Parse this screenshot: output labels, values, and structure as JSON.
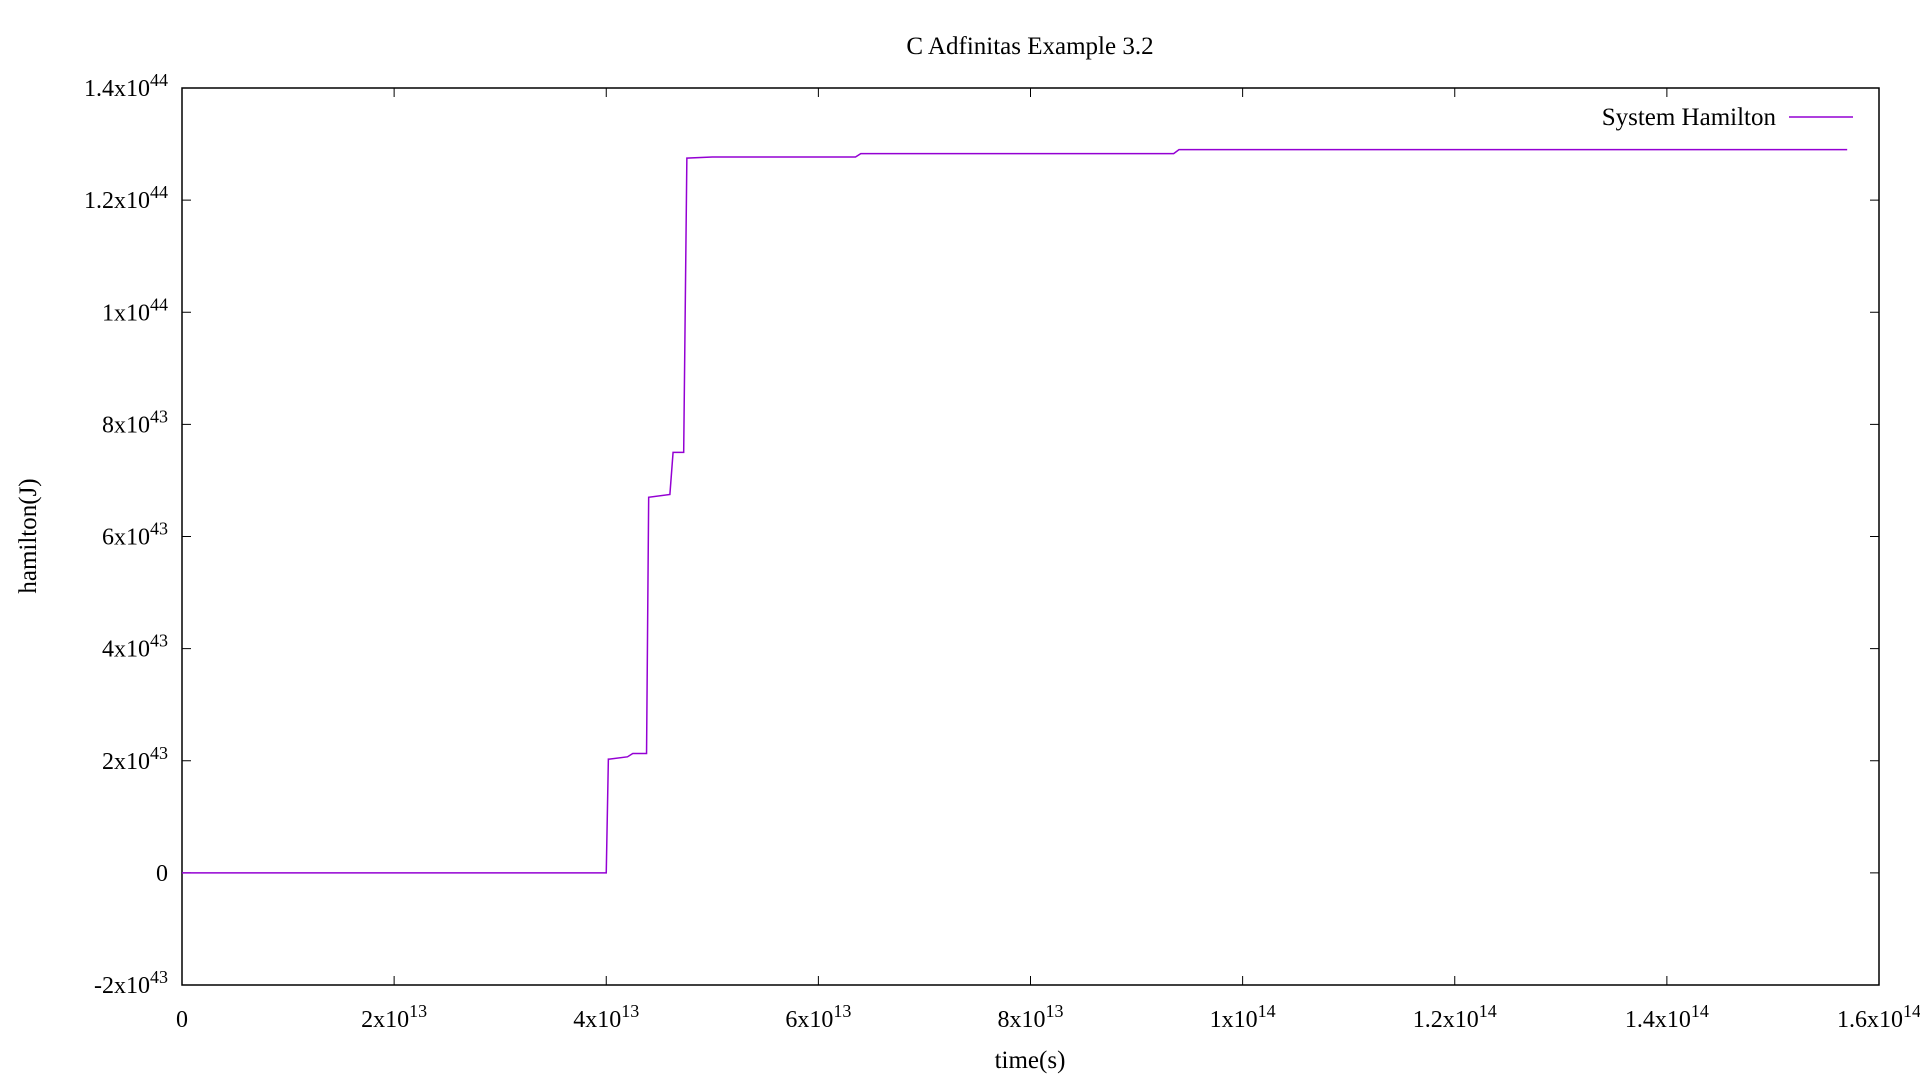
{
  "chart_data": {
    "type": "line",
    "title": "C Adfinitas Example 3.2",
    "xlabel": "time(s)",
    "ylabel": "hamilton(J)",
    "xlim": [
      0,
      160000000000000.0
    ],
    "ylim": [
      -2e+43,
      1.4e+44
    ],
    "grid": false,
    "legend_position": "top-right",
    "x_ticks": [
      {
        "value": 0,
        "mantissa": "0",
        "exponent": ""
      },
      {
        "value": 20000000000000.0,
        "mantissa": "2x10",
        "exponent": "13"
      },
      {
        "value": 40000000000000.0,
        "mantissa": "4x10",
        "exponent": "13"
      },
      {
        "value": 60000000000000.0,
        "mantissa": "6x10",
        "exponent": "13"
      },
      {
        "value": 80000000000000.0,
        "mantissa": "8x10",
        "exponent": "13"
      },
      {
        "value": 100000000000000.0,
        "mantissa": "1x10",
        "exponent": "14"
      },
      {
        "value": 120000000000000.0,
        "mantissa": "1.2x10",
        "exponent": "14"
      },
      {
        "value": 140000000000000.0,
        "mantissa": "1.4x10",
        "exponent": "14"
      },
      {
        "value": 160000000000000.0,
        "mantissa": "1.6x10",
        "exponent": "14"
      }
    ],
    "y_ticks": [
      {
        "value": -2e+43,
        "mantissa": "-2x10",
        "exponent": "43"
      },
      {
        "value": 0,
        "mantissa": "0",
        "exponent": ""
      },
      {
        "value": 2e+43,
        "mantissa": "2x10",
        "exponent": "43"
      },
      {
        "value": 4e+43,
        "mantissa": "4x10",
        "exponent": "43"
      },
      {
        "value": 6e+43,
        "mantissa": "6x10",
        "exponent": "43"
      },
      {
        "value": 8e+43,
        "mantissa": "8x10",
        "exponent": "43"
      },
      {
        "value": 1e+44,
        "mantissa": "1x10",
        "exponent": "44"
      },
      {
        "value": 1.2e+44,
        "mantissa": "1.2x10",
        "exponent": "44"
      },
      {
        "value": 1.4e+44,
        "mantissa": "1.4x10",
        "exponent": "44"
      }
    ],
    "series": [
      {
        "name": "System Hamilton",
        "color": "#9400d3",
        "x": [
          0,
          39000000000000.0,
          40000000000000.0,
          40200000000000.0,
          40300000000000.0,
          42000000000000.0,
          42500000000000.0,
          43800000000000.0,
          44000000000000.0,
          46000000000000.0,
          46300000000000.0,
          46600000000000.0,
          47300000000000.0,
          47600000000000.0,
          50000000000000.0,
          63500000000000.0,
          64000000000000.0,
          93500000000000.0,
          94000000000000.0,
          157000000000000.0
        ],
        "y": [
          0,
          0,
          0,
          2.03e+43,
          2.03e+43,
          2.07e+43,
          2.13e+43,
          2.13e+43,
          6.7e+43,
          6.75e+43,
          7.5e+43,
          7.5e+43,
          7.5e+43,
          1.275e+44,
          1.277e+44,
          1.277e+44,
          1.283e+44,
          1.283e+44,
          1.29e+44,
          1.29e+44
        ]
      }
    ]
  }
}
